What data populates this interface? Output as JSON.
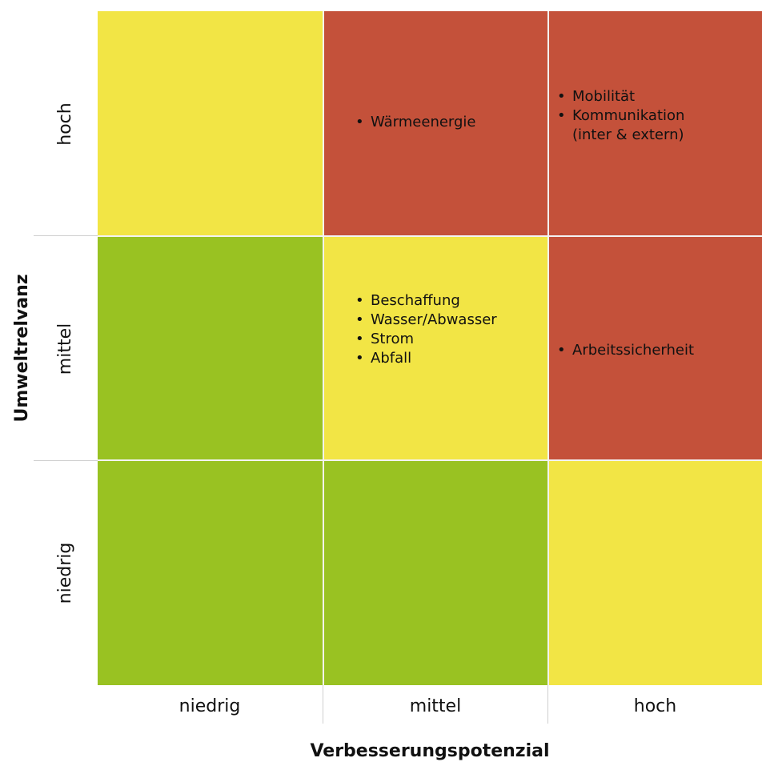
{
  "colors": {
    "high": "#c4513a",
    "medium": "#f2e545",
    "low": "#99c222"
  },
  "x_axis": {
    "title": "Verbesserungspotenzial",
    "levels": [
      "niedrig",
      "mittel",
      "hoch"
    ]
  },
  "y_axis": {
    "title": "Umweltrelvanz",
    "levels": [
      "hoch",
      "mittel",
      "niedrig"
    ]
  },
  "cells": [
    {
      "row": "hoch",
      "col": "niedrig",
      "rating": "medium",
      "items": []
    },
    {
      "row": "hoch",
      "col": "mittel",
      "rating": "high",
      "items": [
        "Wärmeenergie"
      ]
    },
    {
      "row": "hoch",
      "col": "hoch",
      "rating": "high",
      "items": [
        "Mobilität",
        "Kommunikation",
        "(inter & extern)"
      ]
    },
    {
      "row": "mittel",
      "col": "niedrig",
      "rating": "low",
      "items": []
    },
    {
      "row": "mittel",
      "col": "mittel",
      "rating": "medium",
      "items": [
        "Beschaffung",
        "Wasser/Abwasser",
        "Strom",
        "Abfall"
      ]
    },
    {
      "row": "mittel",
      "col": "hoch",
      "rating": "high",
      "items": [
        "Arbeitssicherheit"
      ]
    },
    {
      "row": "niedrig",
      "col": "niedrig",
      "rating": "low",
      "items": []
    },
    {
      "row": "niedrig",
      "col": "mittel",
      "rating": "low",
      "items": []
    },
    {
      "row": "niedrig",
      "col": "hoch",
      "rating": "medium",
      "items": []
    }
  ]
}
